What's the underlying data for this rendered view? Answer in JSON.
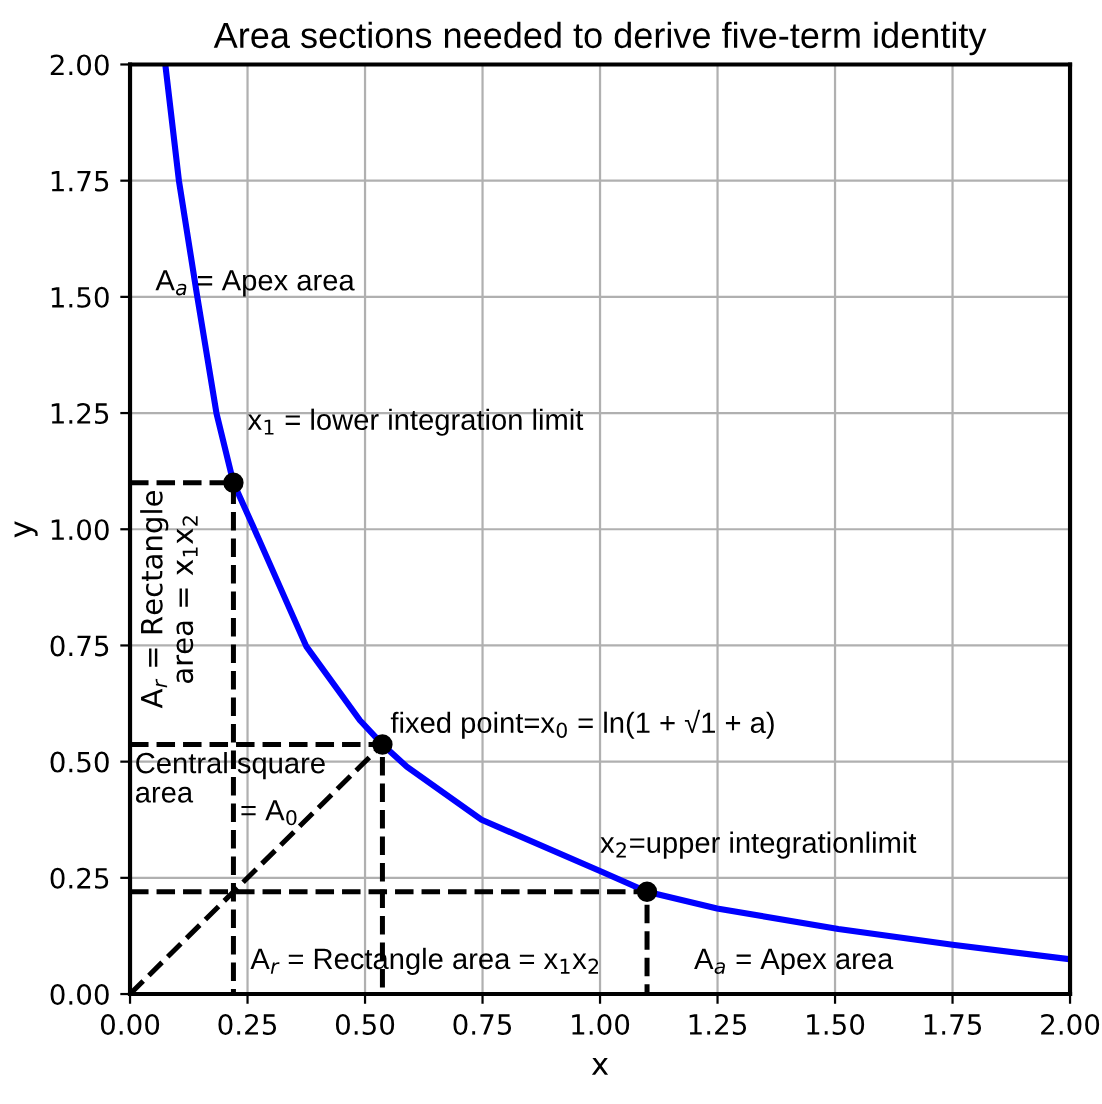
{
  "chart_data": {
    "type": "line",
    "title": "Area sections needed to derive five-term identity",
    "xlabel": "x",
    "ylabel": "y",
    "xlim": [
      0,
      2
    ],
    "ylim": [
      0,
      2
    ],
    "xticks": [
      {
        "value": 0,
        "label": "0.00"
      },
      {
        "value": 0.25,
        "label": "0.25"
      },
      {
        "value": 0.5,
        "label": "0.50"
      },
      {
        "value": 0.75,
        "label": "0.75"
      },
      {
        "value": 1,
        "label": "1.00"
      },
      {
        "value": 1.25,
        "label": "1.25"
      },
      {
        "value": 1.5,
        "label": "1.50"
      },
      {
        "value": 1.75,
        "label": "1.75"
      },
      {
        "value": 2,
        "label": "2.00"
      }
    ],
    "yticks": [
      {
        "value": 0,
        "label": "0.00"
      },
      {
        "value": 0.25,
        "label": "0.25"
      },
      {
        "value": 0.5,
        "label": "0.50"
      },
      {
        "value": 0.75,
        "label": "0.75"
      },
      {
        "value": 1,
        "label": "1.00"
      },
      {
        "value": 1.25,
        "label": "1.25"
      },
      {
        "value": 1.5,
        "label": "1.50"
      },
      {
        "value": 1.75,
        "label": "1.75"
      },
      {
        "value": 2,
        "label": "2.00"
      }
    ],
    "grid": true,
    "series": [
      {
        "type": "line",
        "color": "#0000ff",
        "line_style": "solid",
        "x": [
          0.075,
          0.104,
          0.142,
          0.184,
          0.22,
          0.262,
          0.375,
          0.489,
          0.537,
          0.589,
          0.748,
          1.006,
          1.1,
          1.249,
          1.507,
          1.75,
          2.0
        ],
        "values": [
          2.0,
          1.75,
          1.507,
          1.249,
          1.1,
          1.006,
          0.748,
          0.589,
          0.537,
          0.489,
          0.375,
          0.262,
          0.22,
          0.184,
          0.14,
          0.106,
          0.075
        ]
      },
      {
        "type": "line",
        "color": "#000000",
        "line_style": "dashed",
        "x": [
          0,
          0.22,
          0.22
        ],
        "values": [
          1.1,
          1.1,
          0
        ]
      },
      {
        "type": "line",
        "color": "#000000",
        "line_style": "dashed",
        "x": [
          0,
          0.537,
          0.537
        ],
        "values": [
          0.537,
          0.537,
          0
        ]
      },
      {
        "type": "line",
        "color": "#000000",
        "line_style": "dashed",
        "x": [
          0,
          1.1,
          1.1
        ],
        "values": [
          0.22,
          0.22,
          0
        ]
      },
      {
        "type": "line",
        "color": "#000000",
        "line_style": "dashed",
        "x": [
          0,
          0.537
        ],
        "values": [
          0,
          0.537
        ]
      },
      {
        "type": "scatter",
        "color": "#000000",
        "marker": "circle",
        "x": [
          0.22,
          0.537,
          1.1
        ],
        "values": [
          1.1,
          0.537,
          0.22
        ]
      }
    ],
    "annotations": [
      "A$_{a}$ = Apex area",
      "x$_{1}$ = lower integration limit",
      "fixed point=x$_{0}$ = ln(1 + √1 + a)",
      "Central square\narea",
      "= A$_{0}$",
      "x$_{2}$=upper integrationlimit",
      "A$_{r}$ = Rectangle area = x$_{1}$x$_{2}$",
      "A$_{a}$ = Apex area",
      "A$_{r}$ = Rectangle\narea = x$_{1}$x$_{2}$"
    ]
  }
}
